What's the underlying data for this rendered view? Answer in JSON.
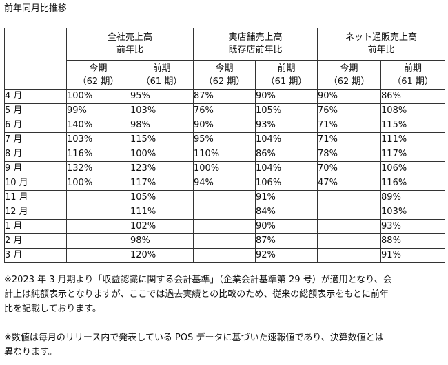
{
  "title": "前年同月比推移",
  "table": {
    "groups": [
      {
        "line1": "全社売上高",
        "line2": "前年比"
      },
      {
        "line1": "実店舗売上高",
        "line2": "既存店前年比"
      },
      {
        "line1": "ネット通販売上高",
        "line2": "前年比"
      }
    ],
    "subheaders": [
      {
        "line1": "今期",
        "line2": "（62 期）"
      },
      {
        "line1": "前期",
        "line2": "（61 期）"
      },
      {
        "line1": "今期",
        "line2": "（62 期）"
      },
      {
        "line1": "前期",
        "line2": "（61 期）"
      },
      {
        "line1": "今期",
        "line2": "（62 期）"
      },
      {
        "line1": "前期",
        "line2": "（61 期）"
      }
    ],
    "rows": [
      {
        "month": "4 月",
        "values": [
          "100%",
          "95%",
          "87%",
          "90%",
          "90%",
          "86%"
        ]
      },
      {
        "month": "5 月",
        "values": [
          "99%",
          "103%",
          "76%",
          "105%",
          "76%",
          "108%"
        ]
      },
      {
        "month": "6 月",
        "values": [
          "140%",
          "98%",
          "90%",
          "93%",
          "71%",
          "115%"
        ]
      },
      {
        "month": "7 月",
        "values": [
          "103%",
          "115%",
          "95%",
          "104%",
          "71%",
          "111%"
        ]
      },
      {
        "month": "8 月",
        "values": [
          "116%",
          "100%",
          "110%",
          "86%",
          "78%",
          "117%"
        ]
      },
      {
        "month": "9 月",
        "values": [
          "132%",
          "123%",
          "100%",
          "104%",
          "70%",
          "106%"
        ]
      },
      {
        "month": "10 月",
        "values": [
          "100%",
          "117%",
          "94%",
          "106%",
          "47%",
          "116%"
        ]
      },
      {
        "month": "11 月",
        "values": [
          "",
          "105%",
          "",
          "91%",
          "",
          "89%"
        ]
      },
      {
        "month": "12 月",
        "values": [
          "",
          "111%",
          "",
          "84%",
          "",
          "103%"
        ]
      },
      {
        "month": "1 月",
        "values": [
          "",
          "102%",
          "",
          "90%",
          "",
          "93%"
        ]
      },
      {
        "month": "2 月",
        "values": [
          "",
          "98%",
          "",
          "87%",
          "",
          "88%"
        ]
      },
      {
        "month": "3 月",
        "values": [
          "",
          "120%",
          "",
          "92%",
          "",
          "91%"
        ]
      }
    ]
  },
  "notes": {
    "note1_line1": "※2023 年 3 月期より「収益認識に関する会計基準」（企業会計基準第 29 号）が適用となり、会",
    "note1_line2": "計上は純額表示となりますが、ここでは過去実績との比較のため、従来の総額表示をもとに前年",
    "note1_line3": "比を記載しております。",
    "note2_line1": "※数値は毎月のリリース内で発表している POS データに基づいた速報値であり、決算数値とは",
    "note2_line2": "異なります。"
  }
}
